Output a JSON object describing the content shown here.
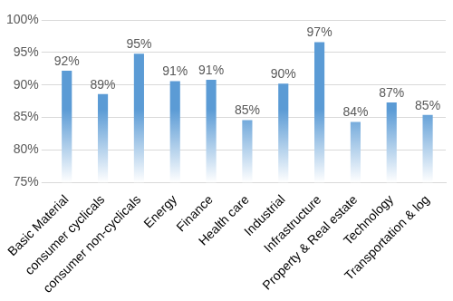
{
  "chart_data": {
    "type": "bar",
    "categories": [
      "Basic Material",
      "consumer cyclicals",
      "consumer non-cyclicals",
      "Energy",
      "Finance",
      "Health care",
      "Industrial",
      "Infrastructure",
      "Property & Real estate",
      "Technology",
      "Transportation & log"
    ],
    "values": [
      92.2,
      88.6,
      94.8,
      90.6,
      90.8,
      84.6,
      90.2,
      96.6,
      84.3,
      87.3,
      85.4
    ],
    "value_labels": [
      "92%",
      "89%",
      "95%",
      "91%",
      "91%",
      "85%",
      "90%",
      "97%",
      "84%",
      "87%",
      "85%"
    ],
    "data_labels": true,
    "color": "#5b9bd5",
    "ylim": [
      75,
      100
    ],
    "yticks": [
      {
        "value": 75,
        "label": "75%"
      },
      {
        "value": 80,
        "label": "80%"
      },
      {
        "value": 85,
        "label": "85%"
      },
      {
        "value": 90,
        "label": "90%"
      },
      {
        "value": 95,
        "label": "95%"
      },
      {
        "value": 100,
        "label": "100%"
      }
    ],
    "grid": true
  }
}
